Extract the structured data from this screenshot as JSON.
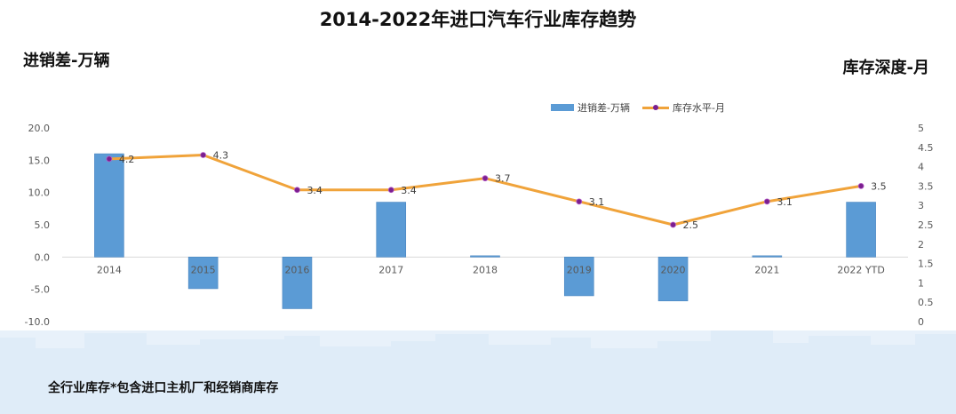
{
  "header": {
    "title": "2014-2022年进口汽车行业库存趋势",
    "left_axis_title": "进销差-万辆",
    "right_axis_title": "库存深度-月"
  },
  "footnote": "全行业库存*包含进口主机厂和经销商库存",
  "legend": {
    "bar_label": "进销差-万辆",
    "line_label": "库存水平-月"
  },
  "colors": {
    "bar": "#5b9bd5",
    "line": "#f0a33a",
    "marker": "#7a1f8f",
    "background_skyline": "#dce9f7"
  },
  "chart_data": {
    "type": "bar",
    "categories": [
      "2014",
      "2015",
      "2016",
      "2017",
      "2018",
      "2019",
      "2020",
      "2021",
      "2022 YTD"
    ],
    "series": [
      {
        "name": "进销差-万辆",
        "type": "bar",
        "axis": "left",
        "values": [
          16.0,
          -4.9,
          -8.0,
          8.5,
          0.2,
          -6.0,
          -6.8,
          0.2,
          8.5
        ]
      },
      {
        "name": "库存水平-月",
        "type": "line",
        "axis": "right",
        "values": [
          4.2,
          4.3,
          3.4,
          3.4,
          3.7,
          3.1,
          2.5,
          3.1,
          3.5
        ],
        "data_labels": [
          "4.2",
          "4.3",
          "3.4",
          "3.4",
          "3.7",
          "3.1",
          "2.5",
          "3.1",
          "3.5"
        ]
      }
    ],
    "y_left": {
      "lim": [
        -10,
        20
      ],
      "ticks": [
        "20.0",
        "15.0",
        "10.0",
        "5.0",
        "0.0",
        "-5.0",
        "-10.0"
      ],
      "tick_values": [
        20,
        15,
        10,
        5,
        0,
        -5,
        -10
      ]
    },
    "y_right": {
      "lim": [
        0,
        5
      ],
      "ticks": [
        "5",
        "4.5",
        "4",
        "3.5",
        "3",
        "2.5",
        "2",
        "1.5",
        "1",
        "0.5",
        "0"
      ],
      "tick_values": [
        5,
        4.5,
        4,
        3.5,
        3,
        2.5,
        2,
        1.5,
        1,
        0.5,
        0
      ]
    },
    "grid": false,
    "legend_position": "top-right"
  }
}
